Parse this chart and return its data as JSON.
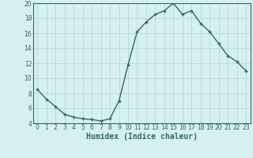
{
  "x": [
    0,
    1,
    2,
    3,
    4,
    5,
    6,
    7,
    8,
    9,
    10,
    11,
    12,
    13,
    14,
    15,
    16,
    17,
    18,
    19,
    20,
    21,
    22,
    23
  ],
  "y": [
    8.5,
    7.2,
    6.2,
    5.2,
    4.8,
    4.6,
    4.5,
    4.3,
    4.6,
    7.0,
    11.8,
    16.2,
    17.5,
    18.5,
    19.0,
    20.0,
    18.5,
    19.0,
    17.3,
    16.2,
    14.6,
    13.0,
    12.2,
    11.0
  ],
  "line_color": "#2e6b5e",
  "marker": "+",
  "marker_size": 3,
  "marker_lw": 1.0,
  "bg_color": "#d6f0ef",
  "grid_color": "#b8d8d4",
  "xlabel": "Humidex (Indice chaleur)",
  "xlim": [
    -0.5,
    23.5
  ],
  "ylim": [
    4,
    20
  ],
  "yticks": [
    4,
    6,
    8,
    10,
    12,
    14,
    16,
    18,
    20
  ],
  "xticks": [
    0,
    1,
    2,
    3,
    4,
    5,
    6,
    7,
    8,
    9,
    10,
    11,
    12,
    13,
    14,
    15,
    16,
    17,
    18,
    19,
    20,
    21,
    22,
    23
  ],
  "tick_fontsize": 5.5,
  "label_fontsize": 7,
  "spine_color": "#2e6b5e",
  "line_width": 1.0
}
